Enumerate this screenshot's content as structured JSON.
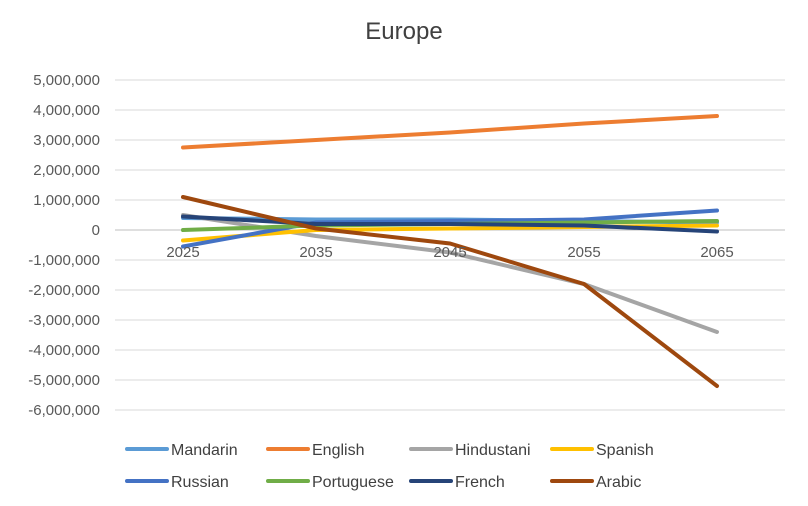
{
  "chart_data": {
    "type": "line",
    "title": "Europe",
    "xlabel": "",
    "ylabel": "",
    "categories": [
      "2025",
      "2035",
      "2045",
      "2055",
      "2065"
    ],
    "ylim": [
      -6000000,
      5000000
    ],
    "yticks": [
      5000000,
      4000000,
      3000000,
      2000000,
      1000000,
      0,
      -1000000,
      -2000000,
      -3000000,
      -4000000,
      -5000000,
      -6000000
    ],
    "ytick_labels": [
      "5,000,000",
      "4,000,000",
      "3,000,000",
      "2,000,000",
      "1,000,000",
      "0",
      "-1,000,000",
      "-2,000,000",
      "-3,000,000",
      "-4,000,000",
      "-5,000,000",
      "-6,000,000"
    ],
    "grid": true,
    "legend_position": "bottom",
    "series": [
      {
        "name": "Mandarin",
        "color": "#5B9BD5",
        "values": [
          400000,
          350000,
          350000,
          300000,
          250000
        ]
      },
      {
        "name": "English",
        "color": "#ED7D31",
        "values": [
          2750000,
          3000000,
          3250000,
          3550000,
          3800000
        ]
      },
      {
        "name": "Hindustani",
        "color": "#A5A5A5",
        "values": [
          500000,
          -200000,
          -750000,
          -1800000,
          -3400000
        ]
      },
      {
        "name": "Spanish",
        "color": "#FFC000",
        "values": [
          -350000,
          0,
          50000,
          100000,
          150000
        ]
      },
      {
        "name": "Russian",
        "color": "#4472C4",
        "values": [
          -550000,
          250000,
          300000,
          350000,
          650000
        ]
      },
      {
        "name": "Portuguese",
        "color": "#70AD47",
        "values": [
          0,
          150000,
          200000,
          250000,
          300000
        ]
      },
      {
        "name": "French",
        "color": "#264478",
        "values": [
          450000,
          200000,
          200000,
          150000,
          -50000
        ]
      },
      {
        "name": "Arabic",
        "color": "#9E480E",
        "values": [
          1100000,
          50000,
          -450000,
          -1800000,
          -5200000
        ]
      }
    ]
  }
}
